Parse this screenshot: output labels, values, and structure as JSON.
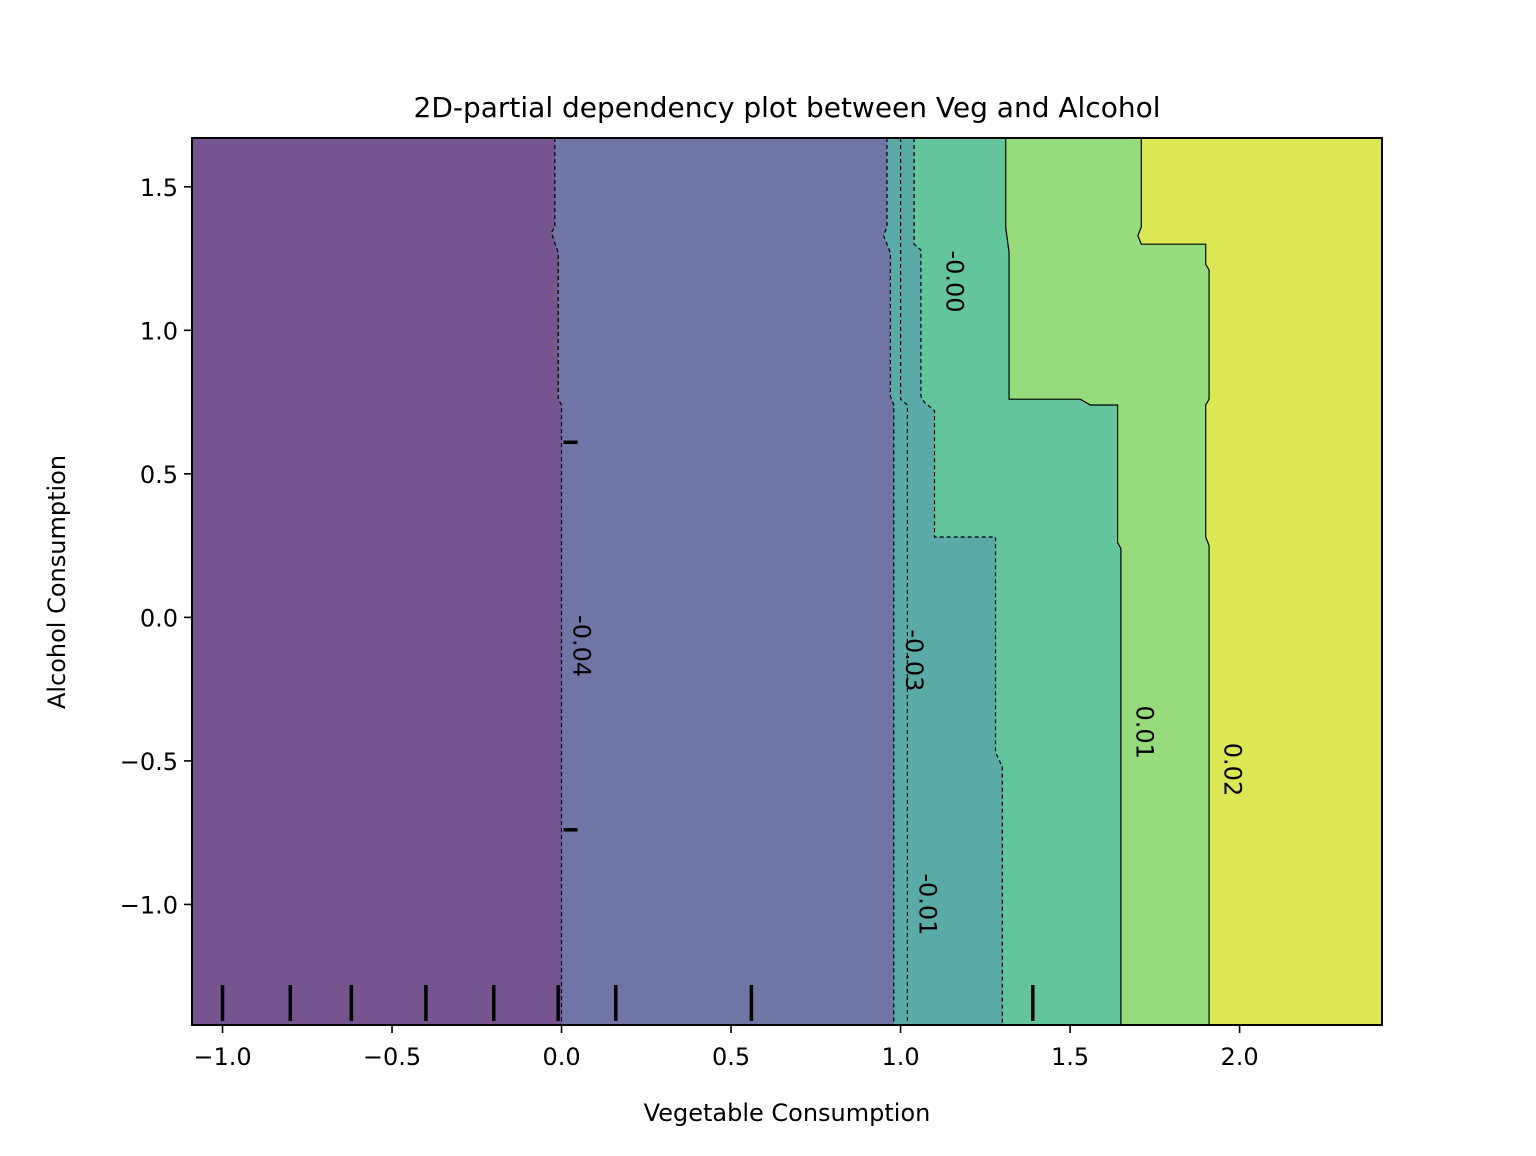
{
  "chart_data": {
    "type": "heatmap",
    "subtype": "filled-contour",
    "title": "2D-partial dependency plot between Veg and Alcohol",
    "xlabel": "Vegetable Consumption",
    "ylabel": "Alcohol Consumption",
    "xlim": [
      -1.09,
      2.42
    ],
    "ylim": [
      -1.42,
      1.67
    ],
    "xticks": [
      -1.0,
      -0.5,
      0.0,
      0.5,
      1.0,
      1.5,
      2.0
    ],
    "xtick_labels": [
      "−1.0",
      "−0.5",
      "0.0",
      "0.5",
      "1.0",
      "1.5",
      "2.0"
    ],
    "yticks": [
      -1.0,
      -0.5,
      0.0,
      0.5,
      1.0,
      1.5
    ],
    "ytick_labels": [
      "−1.0",
      "−0.5",
      "0.0",
      "0.5",
      "1.0",
      "1.5"
    ],
    "grid": false,
    "region_colors": [
      "#75548f",
      "#6f76a6",
      "#5aaba8",
      "#63c59c",
      "#97dc7c",
      "#dbe754"
    ],
    "levels": [
      {
        "value": -0.04,
        "label": "-0.04",
        "linestyle": "dashed",
        "path": [
          [
            -0.02,
            1.67
          ],
          [
            -0.02,
            1.36
          ],
          [
            -0.03,
            1.34
          ],
          [
            -0.01,
            1.27
          ],
          [
            -0.01,
            0.76
          ],
          [
            0.0,
            0.74
          ],
          [
            0.0,
            -1.42
          ]
        ],
        "label_at": [
          0.0,
          -0.1
        ]
      },
      {
        "value": -0.03,
        "label": "-0.03",
        "linestyle": "dashed",
        "path": [
          [
            0.96,
            1.67
          ],
          [
            0.96,
            1.36
          ],
          [
            0.95,
            1.33
          ],
          [
            0.97,
            1.27
          ],
          [
            0.97,
            0.77
          ],
          [
            0.98,
            0.74
          ],
          [
            0.98,
            -1.42
          ]
        ],
        "label_at": [
          0.98,
          -0.15
        ]
      },
      {
        "value": -0.01,
        "label": "-0.01",
        "linestyle": "dashed",
        "path": [
          [
            1.0,
            1.67
          ],
          [
            1.0,
            0.76
          ],
          [
            1.02,
            0.74
          ],
          [
            1.02,
            -1.42
          ]
        ],
        "label_at": [
          1.02,
          -1.0
        ]
      },
      {
        "value": -0.01,
        "label": "",
        "linestyle": "dashed",
        "path": [
          [
            1.04,
            1.67
          ],
          [
            1.04,
            1.3
          ],
          [
            1.06,
            1.28
          ],
          [
            1.06,
            0.77
          ],
          [
            1.07,
            0.75
          ],
          [
            1.1,
            0.72
          ],
          [
            1.1,
            0.28
          ],
          [
            1.28,
            0.28
          ],
          [
            1.28,
            -0.47
          ],
          [
            1.3,
            -0.52
          ],
          [
            1.3,
            -1.42
          ]
        ],
        "label_at": null
      },
      {
        "value": -0.0,
        "label": "-0.00",
        "linestyle": "solid",
        "path": [
          [
            1.31,
            1.67
          ],
          [
            1.31,
            1.36
          ],
          [
            1.32,
            1.27
          ],
          [
            1.32,
            0.76
          ],
          [
            1.53,
            0.76
          ],
          [
            1.56,
            0.74
          ],
          [
            1.64,
            0.74
          ],
          [
            1.64,
            0.26
          ],
          [
            1.65,
            0.24
          ],
          [
            1.65,
            -1.42
          ]
        ],
        "label_at": [
          1.1,
          1.17
        ]
      },
      {
        "value": 0.01,
        "label": "0.01",
        "linestyle": "solid",
        "path": [
          [
            1.71,
            1.67
          ],
          [
            1.71,
            1.36
          ],
          [
            1.7,
            1.33
          ],
          [
            1.71,
            1.3
          ],
          [
            1.9,
            1.3
          ],
          [
            1.9,
            1.23
          ],
          [
            1.91,
            1.21
          ],
          [
            1.91,
            0.76
          ],
          [
            1.9,
            0.74
          ],
          [
            1.9,
            0.28
          ],
          [
            1.91,
            0.25
          ],
          [
            1.91,
            -1.42
          ]
        ],
        "label_at": [
          1.66,
          -0.4
        ]
      },
      {
        "value": 0.02,
        "label": "0.02",
        "linestyle": "solid",
        "path": [],
        "label_at": [
          1.92,
          -0.53
        ]
      }
    ],
    "rug_x": [
      -1.0,
      -0.8,
      -0.62,
      -0.4,
      -0.2,
      -0.01,
      0.16,
      0.56,
      1.39
    ],
    "rug_y": [
      0.61,
      -0.74
    ]
  }
}
